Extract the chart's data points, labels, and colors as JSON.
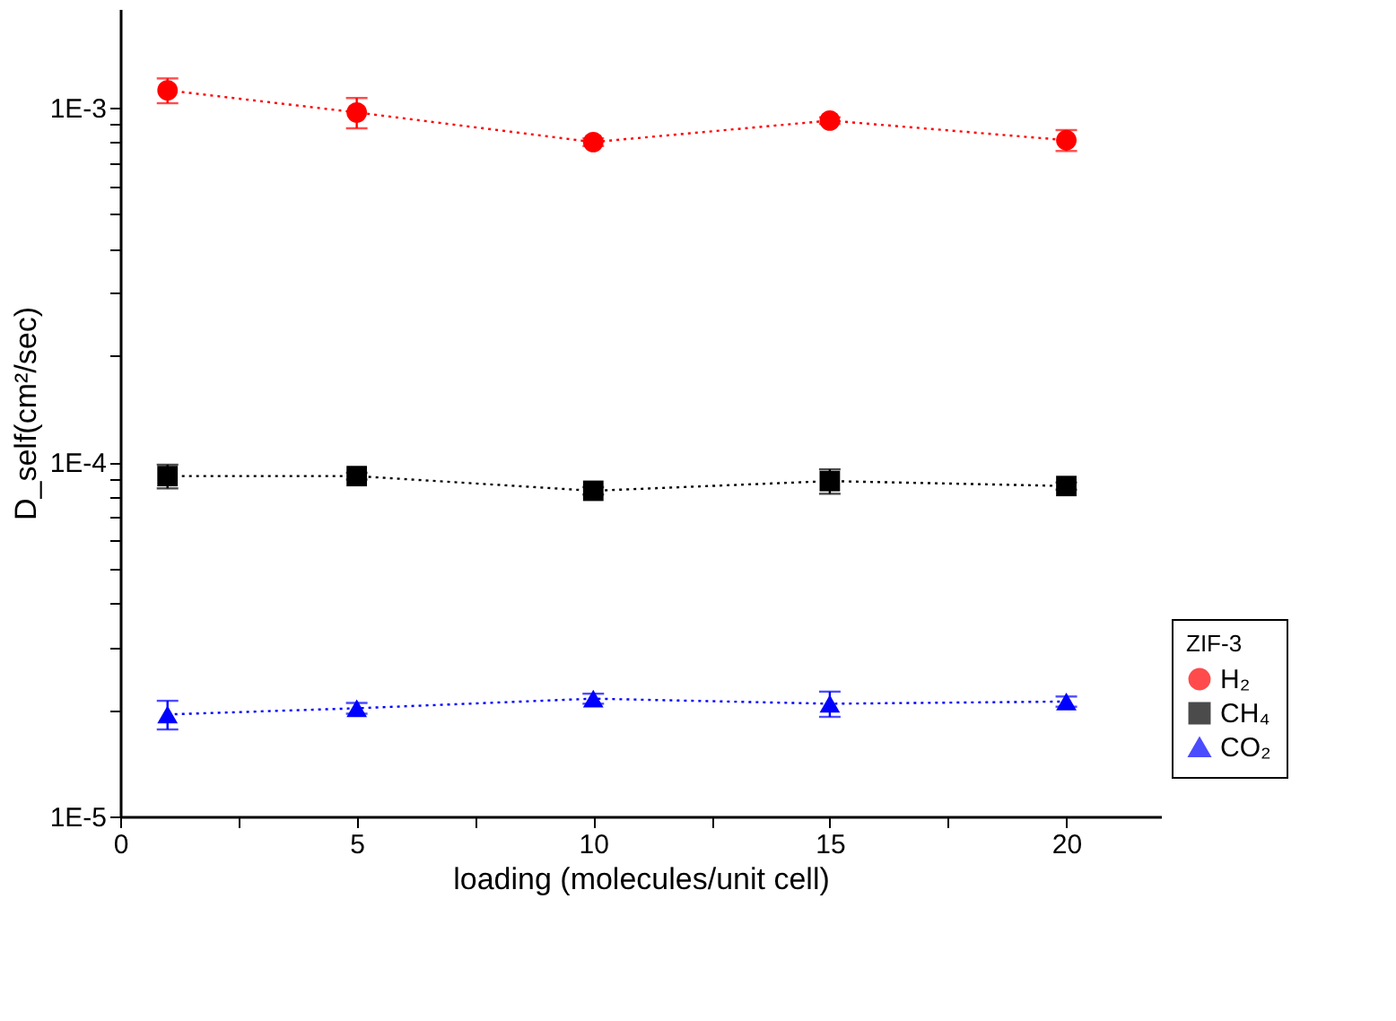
{
  "chart_data": {
    "type": "line",
    "xlabel": "loading (molecules/unit cell)",
    "ylabel": "D_self(cm²/sec)",
    "legend_title": "ZIF-3",
    "x": [
      1,
      5,
      10,
      15,
      20
    ],
    "series": [
      {
        "name": "H₂",
        "color": "#ff0000",
        "marker": "circle",
        "values": [
          0.00112,
          0.00097,
          0.0008,
          0.00092,
          0.00081
        ],
        "errors": [
          9e-05,
          9.5e-05,
          2e-05,
          2e-05,
          5.5e-05
        ]
      },
      {
        "name": "CH₄",
        "color": "#000000",
        "marker": "square",
        "values": [
          9.13e-05,
          9.13e-05,
          8.3e-05,
          8.84e-05,
          8.56e-05
        ],
        "errors": [
          7e-06,
          2e-06,
          2e-06,
          7e-06,
          2e-06
        ]
      },
      {
        "name": "CO₂",
        "color": "#0000ff",
        "marker": "triangle",
        "values": [
          1.94e-05,
          2.02e-05,
          2.15e-05,
          2.08e-05,
          2.11e-05
        ],
        "errors": [
          1.8e-06,
          7e-07,
          7e-07,
          1.7e-06,
          7e-07
        ]
      }
    ],
    "line_style": "dotted",
    "log": "y",
    "grid": false,
    "legend": "bottom right",
    "xlim": [
      0,
      22
    ],
    "xticks": [
      0,
      {
        "value": 2.5,
        "label": null
      },
      5,
      {
        "value": 7.5,
        "label": null
      },
      10,
      {
        "value": 12.5,
        "label": null
      },
      15,
      {
        "value": 17.5,
        "label": null
      },
      20
    ],
    "ylim": [
      1e-05,
      0.0019
    ],
    "yticks": [
      {
        "value": 1e-05,
        "label": "1E-5"
      },
      {
        "value": 2e-05,
        "label": null
      },
      {
        "value": 3e-05,
        "label": null
      },
      {
        "value": 4e-05,
        "label": null
      },
      {
        "value": 5e-05,
        "label": null
      },
      {
        "value": 6e-05,
        "label": null
      },
      {
        "value": 7e-05,
        "label": null
      },
      {
        "value": 8e-05,
        "label": null
      },
      {
        "value": 9e-05,
        "label": null
      },
      {
        "value": 0.0001,
        "label": "1E-4"
      },
      {
        "value": 0.0002,
        "label": null
      },
      {
        "value": 0.0003,
        "label": null
      },
      {
        "value": 0.0004,
        "label": null
      },
      {
        "value": 0.0005,
        "label": null
      },
      {
        "value": 0.0006,
        "label": null
      },
      {
        "value": 0.0007,
        "label": null
      },
      {
        "value": 0.0008,
        "label": null
      },
      {
        "value": 0.0009,
        "label": null
      },
      {
        "value": 0.001,
        "label": "1E-3"
      }
    ]
  }
}
